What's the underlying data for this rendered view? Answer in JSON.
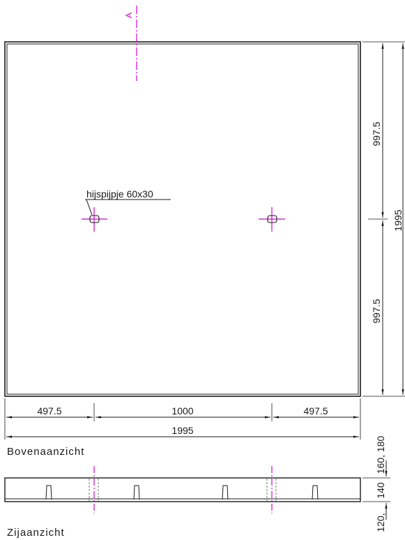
{
  "section_marker": "A",
  "callout": "hijspijpje 60x30",
  "dims_bottom": {
    "left": "497.5",
    "middle": "1000",
    "right": "497.5",
    "overall": "1995"
  },
  "dims_right": {
    "upper": "997.5",
    "lower": "997.5",
    "overall": "1995"
  },
  "views": {
    "top": "Bovenaanzicht",
    "side": "Zijaanzicht"
  },
  "side_dims": {
    "top": "160, 180",
    "mid": "140",
    "bottom": "120,"
  },
  "colors": {
    "line": "#1a1a1a",
    "center": "#d400d4",
    "thin": "#555555"
  }
}
